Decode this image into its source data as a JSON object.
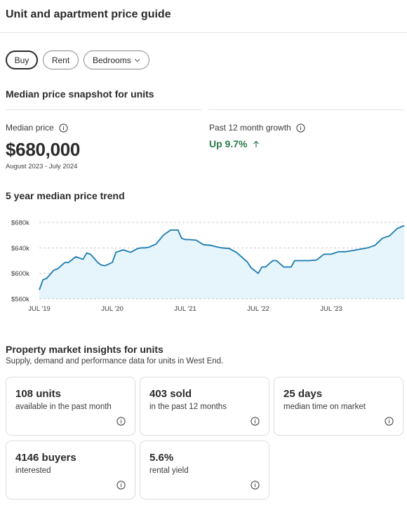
{
  "header": {
    "title": "Unit and apartment price guide"
  },
  "filters": {
    "buy": "Buy",
    "rent": "Rent",
    "bedrooms": "Bedrooms"
  },
  "snapshot": {
    "title": "Median price snapshot for units",
    "median_label": "Median price",
    "median_value": "$680,000",
    "date_range": "August 2023 - July 2024",
    "growth_label": "Past 12 month growth",
    "growth_value": "Up 9.7%",
    "growth_color": "#2a7a4a"
  },
  "trend": {
    "title": "5 year median price trend"
  },
  "chart_data": {
    "type": "area",
    "title": "5 year median price trend",
    "y_tick_labels": [
      "$680k",
      "$640k",
      "$600k",
      "$560k"
    ],
    "y_ticks": [
      680,
      640,
      600,
      560
    ],
    "ylim": [
      560,
      680
    ],
    "x_tick_labels": [
      "JUL '19",
      "JUL '20",
      "JUL '21",
      "JUL '22",
      "JUL '23"
    ],
    "x_ticks": [
      2019.5,
      2020.5,
      2021.5,
      2022.5,
      2023.5
    ],
    "xlim": [
      2019.5,
      2024.5
    ],
    "grid": "horizontal dashed",
    "line_color": "#1a7ab0",
    "fill_color": "#e6f5fb",
    "series": [
      {
        "x": [
          2019.5,
          2019.55,
          2019.6,
          2019.7,
          2019.75,
          2019.85,
          2019.9,
          2020.0,
          2020.1,
          2020.15,
          2020.2,
          2020.25,
          2020.3,
          2020.35,
          2020.4,
          2020.5,
          2020.55,
          2020.65,
          2020.75,
          2020.85,
          2020.9,
          2020.95,
          2021.0,
          2021.1,
          2021.2,
          2021.3,
          2021.35,
          2021.4,
          2021.45,
          2021.5,
          2021.55,
          2021.65,
          2021.75,
          2021.85,
          2021.95,
          2022.0,
          2022.1,
          2022.2,
          2022.25,
          2022.35,
          2022.4,
          2022.5,
          2022.55,
          2022.6,
          2022.7,
          2022.75,
          2022.85,
          2022.95,
          2023.0,
          2023.1,
          2023.2,
          2023.3,
          2023.4,
          2023.5,
          2023.6,
          2023.7,
          2023.8,
          2023.9,
          2024.0,
          2024.1,
          2024.2,
          2024.3,
          2024.4,
          2024.5
        ],
        "y": [
          574,
          590,
          592,
          605,
          607,
          617,
          617,
          626,
          622,
          632,
          630,
          624,
          617,
          613,
          612,
          617,
          633,
          637,
          633,
          639,
          640,
          640,
          641,
          646,
          660,
          668,
          668,
          668,
          655,
          653,
          653,
          652,
          645,
          644,
          641,
          640,
          639,
          633,
          628,
          618,
          609,
          600,
          610,
          610,
          620,
          620,
          610,
          610,
          620,
          620,
          620,
          621,
          630,
          630,
          634,
          634,
          636,
          638,
          640,
          644,
          655,
          659,
          670,
          675
        ]
      }
    ]
  },
  "insights": {
    "title": "Property market insights for units",
    "subtitle": "Supply, demand and performance data for units in West End.",
    "cards": [
      {
        "value": "108 units",
        "desc": "available in the past month"
      },
      {
        "value": "403 sold",
        "desc": "in the past 12 months"
      },
      {
        "value": "25 days",
        "desc": "median time on market"
      },
      {
        "value": "4146 buyers",
        "desc": "interested"
      },
      {
        "value": "5.6%",
        "desc": "rental yield"
      }
    ]
  },
  "icons": {
    "info": "info-icon",
    "chevron": "chevron-down-icon",
    "growth_arrow": "arrow-up-icon"
  }
}
